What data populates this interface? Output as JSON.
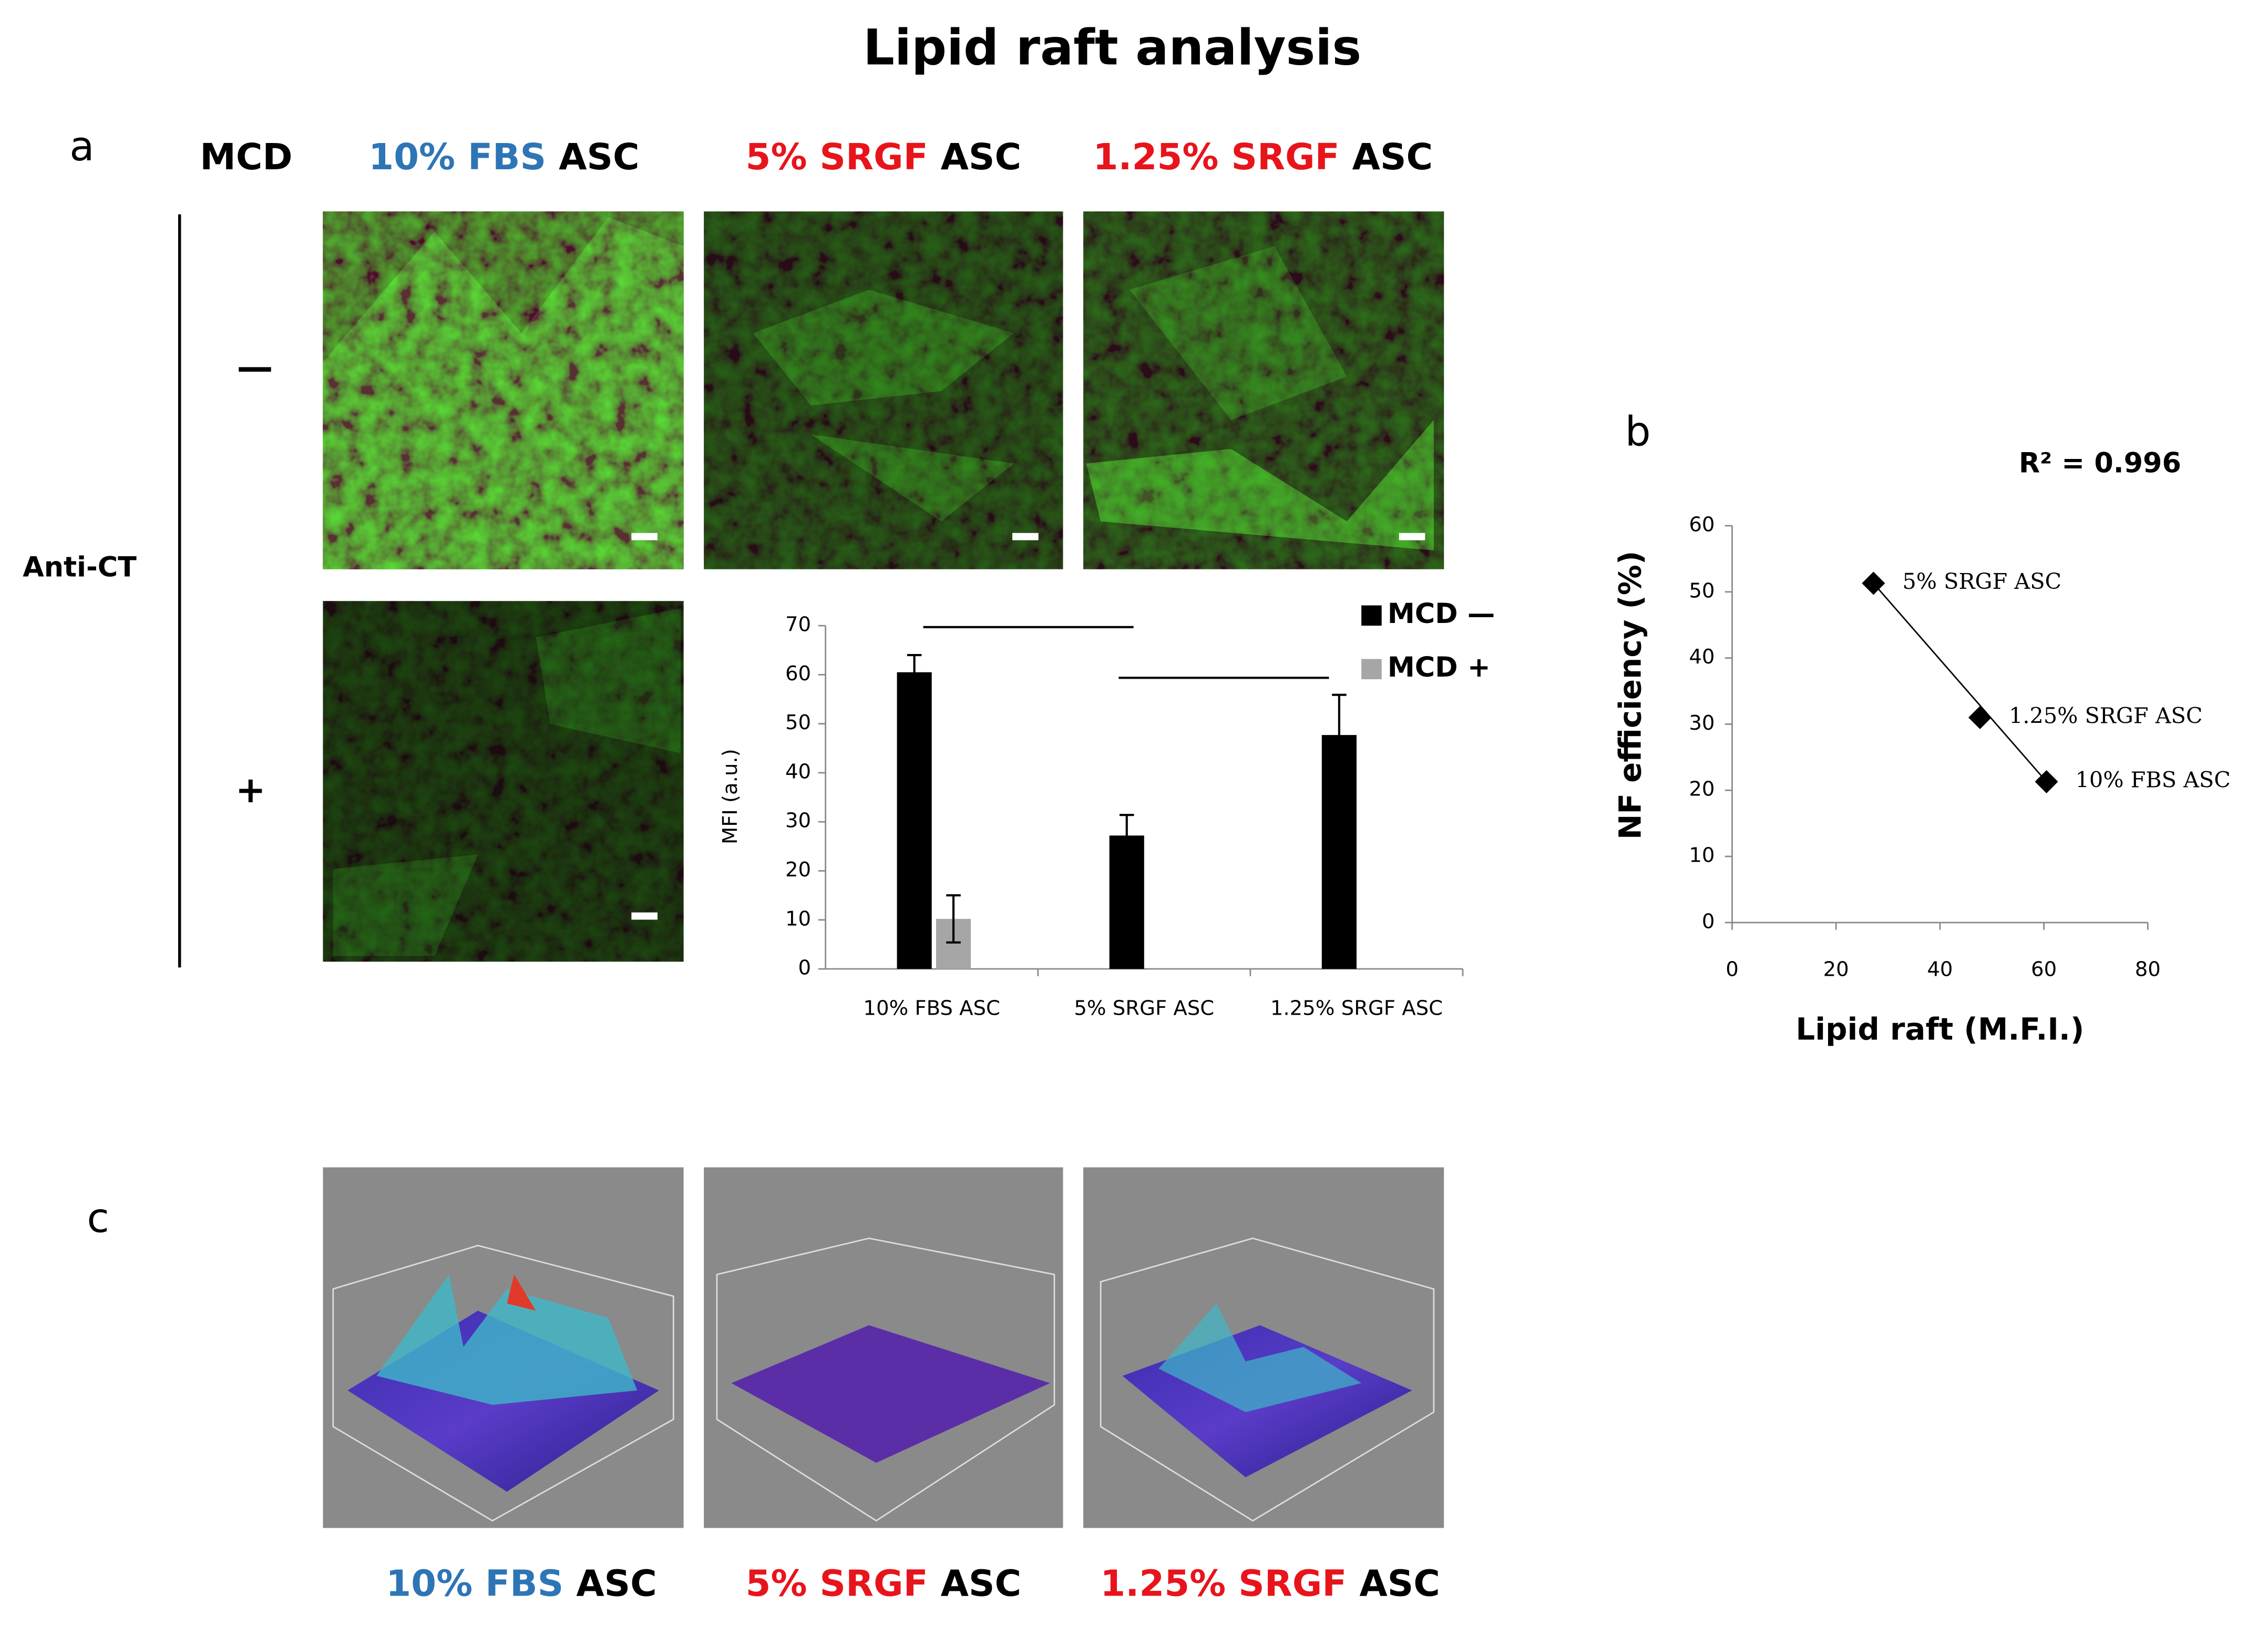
{
  "title": "Lipid raft analysis",
  "panel_a": {
    "label": "a",
    "mcd_header": "MCD",
    "stain": "Anti-CT",
    "row_labels": [
      "—",
      "+"
    ],
    "columns": [
      {
        "highlight": "10% FBS",
        "color": "#2e75b6",
        "rest": "ASC"
      },
      {
        "highlight": "5% SRGF",
        "color": "#e8141b",
        "rest": "ASC"
      },
      {
        "highlight": "1.25% SRGF",
        "color": "#e8141b",
        "rest": "ASC"
      }
    ]
  },
  "panel_b": {
    "label": "b"
  },
  "panel_c": {
    "label": "c",
    "captions": [
      {
        "highlight": "10% FBS",
        "color": "#2e75b6",
        "rest": "ASC"
      },
      {
        "highlight": "5% SRGF",
        "color": "#e8141b",
        "rest": "ASC"
      },
      {
        "highlight": "1.25% SRGF",
        "color": "#e8141b",
        "rest": "ASC"
      }
    ]
  },
  "chart_data": [
    {
      "type": "bar",
      "ylabel": "MFI (a.u.)",
      "categories": [
        "10% FBS ASC",
        "5% SRGF ASC",
        "1.25% SRGF ASC"
      ],
      "series": [
        {
          "name": "MCD —",
          "color": "#000000",
          "values": [
            60.5,
            27.2,
            47.7
          ],
          "errors": [
            3.5,
            4.2,
            8.2
          ]
        },
        {
          "name": "MCD +",
          "color": "#a6a6a6",
          "values": [
            10.2,
            null,
            null
          ],
          "errors": [
            4.8,
            null,
            null
          ]
        }
      ],
      "ylim": [
        0,
        70
      ],
      "yticks": [
        0,
        10,
        20,
        30,
        40,
        50,
        60,
        70
      ],
      "grid": false
    },
    {
      "type": "scatter",
      "xlabel": "Lipid raft (M.F.I.)",
      "ylabel": "NF efficiency (%)",
      "annotation": "R² = 0.996",
      "series": [
        {
          "color": "#000000",
          "x": [
            27.2,
            47.7,
            60.5
          ],
          "y": [
            51.3,
            31,
            21.3
          ],
          "labels": [
            "5% SRGF ASC",
            "1.25% SRGF ASC",
            "10% FBS ASC"
          ]
        }
      ],
      "xlim": [
        0,
        80
      ],
      "xticks": [
        0,
        20,
        40,
        60,
        80
      ],
      "ylim": [
        0,
        60
      ],
      "yticks": [
        0,
        10,
        20,
        30,
        40,
        50,
        60
      ],
      "grid": false
    }
  ]
}
